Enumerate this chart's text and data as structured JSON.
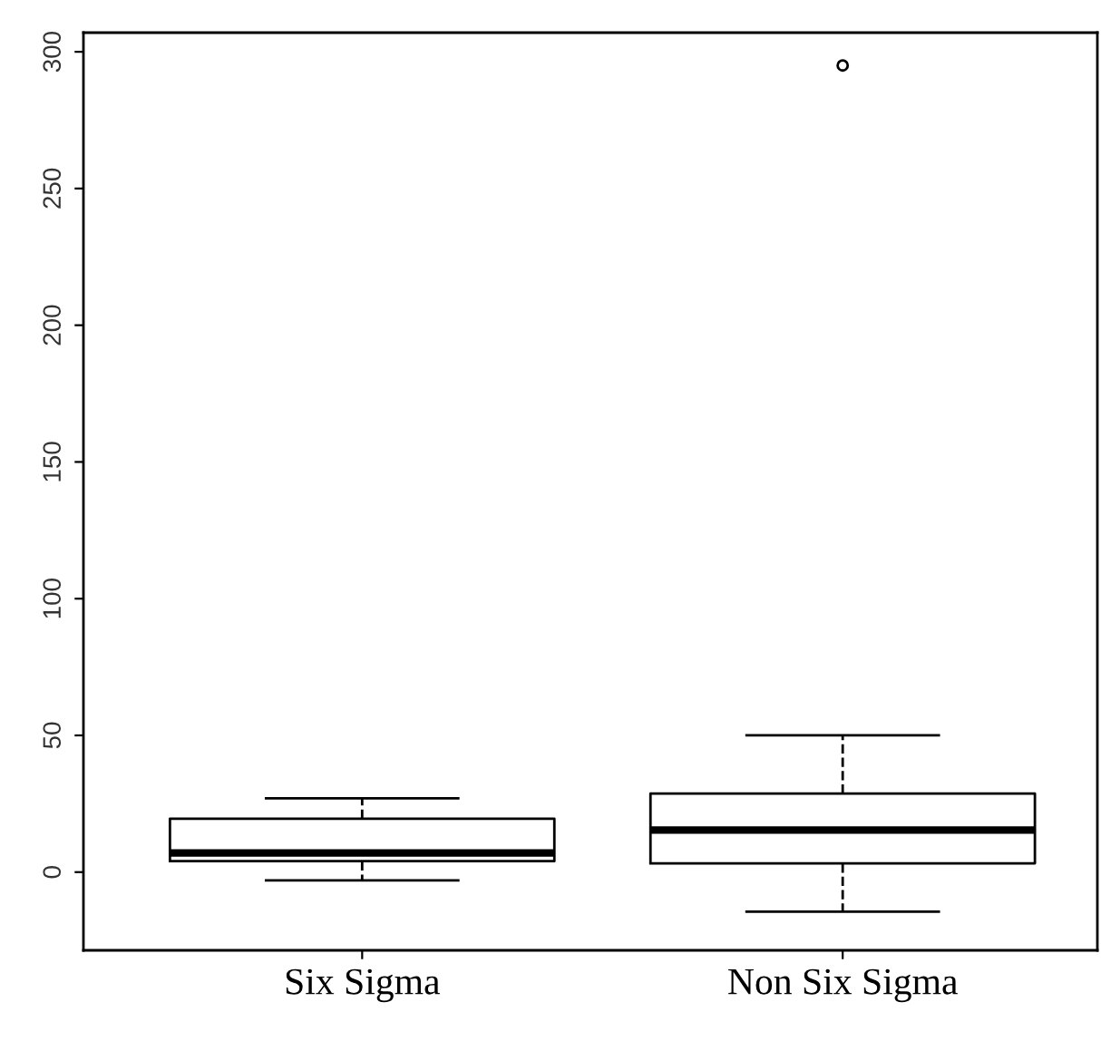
{
  "chart_data": {
    "type": "box",
    "categories": [
      "Six Sigma",
      "Non Six Sigma"
    ],
    "boxes": [
      {
        "low": -3,
        "q1": 4,
        "median": 7,
        "q3": 19.5,
        "high": 27
      },
      {
        "low": -14.5,
        "q1": 3.2,
        "median": 15.4,
        "q3": 28.7,
        "high": 50,
        "outliers": [
          295
        ]
      }
    ],
    "ylim": [
      -28.6,
      307
    ],
    "yticks": [
      0,
      50,
      100,
      150,
      200,
      250,
      300
    ],
    "grid": false
  }
}
